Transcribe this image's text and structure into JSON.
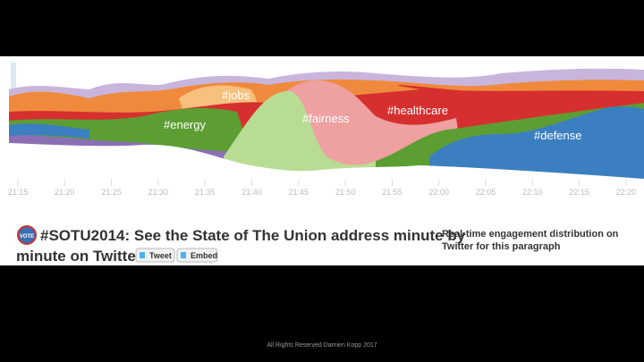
{
  "graph": {
    "x_ticks": [
      "21:15",
      "21:20",
      "21:25",
      "21:30",
      "21:35",
      "21:40",
      "21:45",
      "21:50",
      "21:55",
      "22:00",
      "22:05",
      "22:10",
      "22:15",
      "22:20"
    ],
    "stream_labels": [
      "#energy",
      "#jobs",
      "#fairness",
      "#healthcare",
      "#defense"
    ]
  },
  "header": {
    "title_line_1": "#SOTU2014: See the State of The Union address minute by",
    "title_line_2": "minute on Twitter",
    "badge": "VOTE"
  },
  "buttons": [
    "Tweet",
    "Embed"
  ],
  "caption": [
    "Real-time engagement distribution on",
    "Twitter for this paragraph"
  ],
  "footer": "All Rights Reserved Damien Kopp 2017"
}
